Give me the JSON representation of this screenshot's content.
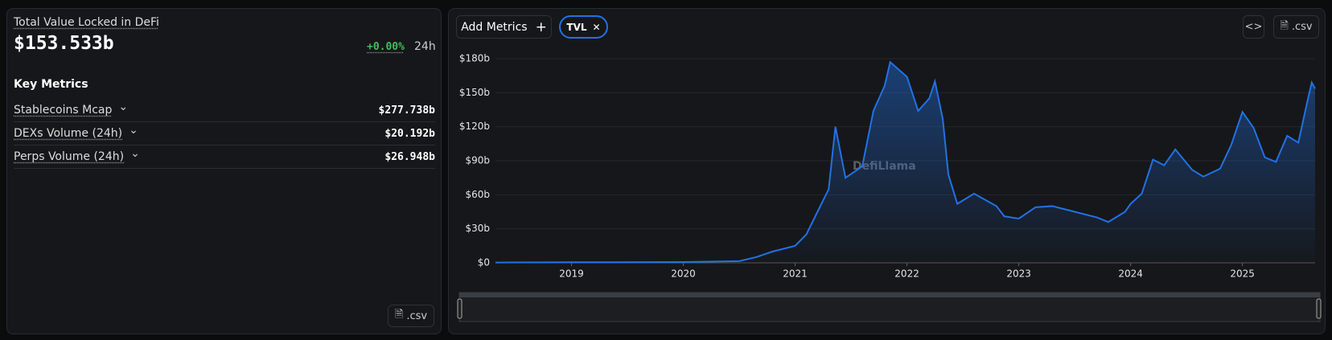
{
  "summary": {
    "title": "Total Value Locked in DeFi",
    "value": "$153.533b",
    "change": "+0.00%",
    "period": "24h"
  },
  "key_metrics": {
    "title": "Key Metrics",
    "items": [
      {
        "label": "Stablecoins Mcap",
        "value": "$277.738b"
      },
      {
        "label": "DEXs Volume (24h)",
        "value": "$20.192b"
      },
      {
        "label": "Perps Volume (24h)",
        "value": "$26.948b"
      }
    ]
  },
  "buttons": {
    "left_csv": ".csv",
    "add_metrics": "Add Metrics",
    "chip": "TVL",
    "right_csv": ".csv"
  },
  "watermark": "DefiLlama",
  "chart_data": {
    "type": "line",
    "color": "#2172e5",
    "x": [
      2018.32,
      2019.0,
      2020.0,
      2020.5,
      2020.65,
      2020.8,
      2021.0,
      2021.1,
      2021.2,
      2021.3,
      2021.36,
      2021.45,
      2021.6,
      2021.7,
      2021.8,
      2021.85,
      2022.0,
      2022.1,
      2022.2,
      2022.25,
      2022.32,
      2022.37,
      2022.45,
      2022.6,
      2022.8,
      2022.87,
      2023.0,
      2023.15,
      2023.3,
      2023.5,
      2023.7,
      2023.8,
      2023.95,
      2024.0,
      2024.1,
      2024.2,
      2024.3,
      2024.4,
      2024.55,
      2024.65,
      2024.8,
      2024.9,
      2025.0,
      2025.1,
      2025.2,
      2025.3,
      2025.4,
      2025.5,
      2025.58,
      2025.62,
      2025.65
    ],
    "values": [
      0.3,
      0.5,
      0.7,
      1.5,
      5,
      10,
      15,
      25,
      45,
      65,
      120,
      75,
      85,
      134,
      156,
      177,
      164,
      134,
      145,
      160,
      127,
      78,
      52,
      61,
      50,
      41,
      39,
      49,
      50,
      45,
      40,
      36,
      45,
      52,
      61,
      91,
      86,
      100,
      82,
      76,
      83,
      104,
      133,
      119,
      93,
      89,
      112,
      106,
      142,
      159,
      153.533
    ],
    "xlim": [
      2018.32,
      2025.65
    ],
    "xticks": [
      2019,
      2020,
      2021,
      2022,
      2023,
      2024,
      2025
    ],
    "ylim": [
      0,
      180
    ],
    "yticks": [
      {
        "value": 0,
        "label": "$0"
      },
      {
        "value": 30,
        "label": "$30b"
      },
      {
        "value": 60,
        "label": "$60b"
      },
      {
        "value": 90,
        "label": "$90b"
      },
      {
        "value": 120,
        "label": "$120b"
      },
      {
        "value": 150,
        "label": "$150b"
      },
      {
        "value": 180,
        "label": "$180b"
      }
    ],
    "grid": true
  }
}
